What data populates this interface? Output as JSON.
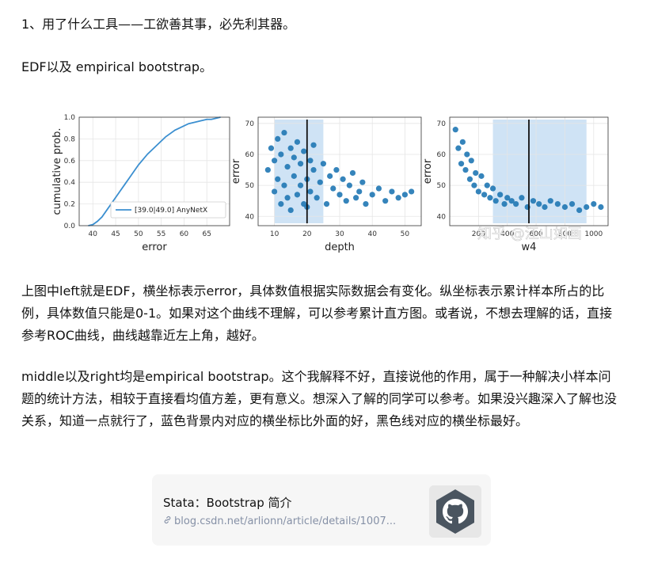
{
  "paragraphs": {
    "p1": "1、用了什么工具——工欲善其事，必先利其器。",
    "p2": "EDF以及 empirical bootstrap。",
    "p3": "上图中left就是EDF，横坐标表示error，具体数值根据实际数据会有变化。纵坐标表示累计样本所占的比例，具体数值只能是0-1。如果对这个曲线不理解，可以参考累计直方图。或者说，不想去理解的话，直接参考ROC曲线，曲线越靠近左上角，越好。",
    "p4": "middle以及right均是empirical bootstrap。这个我解释不好，直接说他的作用，属于一种解决小样本问题的统计方法，相较于直接看均值方差，更有意义。想深入了解的同学可以参考。如果没兴趣深入了解也没关系，知道一点就行了，蓝色背景内对应的横坐标比外面的好，黑色线对应的横坐标最好。"
  },
  "figure": {
    "watermark": "知乎 @江山如画",
    "colors": {
      "line": "#3b8fd0",
      "point": "#1f77b4",
      "band": "#cfe3f5",
      "marker": "#111111"
    }
  },
  "chart_data": [
    {
      "type": "line",
      "xlabel": "error",
      "ylabel": "cumulative prob.",
      "xlim": [
        37,
        70
      ],
      "ylim": [
        0,
        1.0
      ],
      "xticks": [
        "40",
        "45",
        "50",
        "55",
        "60",
        "65"
      ],
      "yticks": [
        "0.0",
        "0.2",
        "0.4",
        "0.6",
        "0.8",
        "1.0"
      ],
      "grid": true,
      "legend_position": "bottom-right",
      "series": [
        {
          "name": "[39.0|49.0] AnyNetX",
          "x": [
            39,
            40,
            41,
            42,
            43,
            44,
            45,
            46,
            47,
            48,
            49,
            50,
            51,
            52,
            53,
            54,
            55,
            56,
            57,
            58,
            59,
            60,
            61,
            62,
            63,
            64,
            65,
            66,
            67,
            68
          ],
          "y": [
            0.0,
            0.01,
            0.04,
            0.08,
            0.14,
            0.2,
            0.26,
            0.32,
            0.38,
            0.44,
            0.5,
            0.56,
            0.61,
            0.66,
            0.7,
            0.74,
            0.78,
            0.82,
            0.85,
            0.88,
            0.9,
            0.92,
            0.94,
            0.95,
            0.96,
            0.97,
            0.98,
            0.98,
            0.99,
            1.0
          ]
        }
      ]
    },
    {
      "type": "scatter",
      "xlabel": "depth",
      "ylabel": "error",
      "xlim": [
        5,
        55
      ],
      "ylim": [
        37,
        72
      ],
      "xticks": [
        "10",
        "20",
        "30",
        "40",
        "50"
      ],
      "yticks": [
        "40",
        "50",
        "60",
        "70"
      ],
      "grid": true,
      "shaded_interval": [
        10,
        25
      ],
      "best_value": 20,
      "series": [
        {
          "x": [
            8,
            9,
            10,
            10,
            11,
            11,
            12,
            12,
            13,
            13,
            14,
            14,
            15,
            15,
            16,
            16,
            17,
            17,
            18,
            18,
            19,
            19,
            20,
            20,
            21,
            21,
            22,
            22,
            23,
            24,
            25,
            26,
            27,
            28,
            29,
            30,
            31,
            32,
            33,
            34,
            35,
            36,
            37,
            38,
            40,
            42,
            44,
            46,
            48,
            50,
            52
          ],
          "y": [
            55,
            62,
            48,
            58,
            65,
            52,
            44,
            60,
            50,
            67,
            46,
            56,
            62,
            42,
            53,
            59,
            47,
            64,
            50,
            57,
            44,
            61,
            52,
            43,
            58,
            48,
            55,
            63,
            46,
            51,
            57,
            44,
            53,
            49,
            55,
            47,
            52,
            45,
            50,
            54,
            46,
            48,
            51,
            44,
            47,
            49,
            45,
            48,
            46,
            47,
            48
          ]
        }
      ]
    },
    {
      "type": "scatter",
      "xlabel": "w4",
      "ylabel": "error",
      "xlim": [
        0,
        1100
      ],
      "ylim": [
        37,
        72
      ],
      "xticks": [
        "200",
        "400",
        "600",
        "800",
        "1000"
      ],
      "yticks": [
        "40",
        "50",
        "60",
        "70"
      ],
      "grid": true,
      "shaded_interval": [
        300,
        950
      ],
      "best_value": 550,
      "series": [
        {
          "x": [
            40,
            60,
            80,
            90,
            110,
            120,
            140,
            150,
            170,
            180,
            200,
            220,
            240,
            260,
            280,
            300,
            320,
            350,
            380,
            400,
            430,
            460,
            500,
            540,
            580,
            620,
            660,
            700,
            750,
            800,
            850,
            900,
            950,
            1000,
            1050
          ],
          "y": [
            68,
            62,
            57,
            64,
            55,
            60,
            52,
            58,
            50,
            54,
            48,
            53,
            47,
            50,
            46,
            49,
            45,
            47,
            44,
            46,
            45,
            44,
            46,
            43,
            45,
            44,
            43,
            45,
            44,
            43,
            44,
            42,
            43,
            44,
            43
          ]
        }
      ]
    }
  ],
  "card": {
    "title": "Stata：Bootstrap 简介",
    "url": "blog.csdn.net/arlionn/article/details/1007...",
    "link_icon": "link-icon",
    "thumb_icon": "github-icon"
  }
}
